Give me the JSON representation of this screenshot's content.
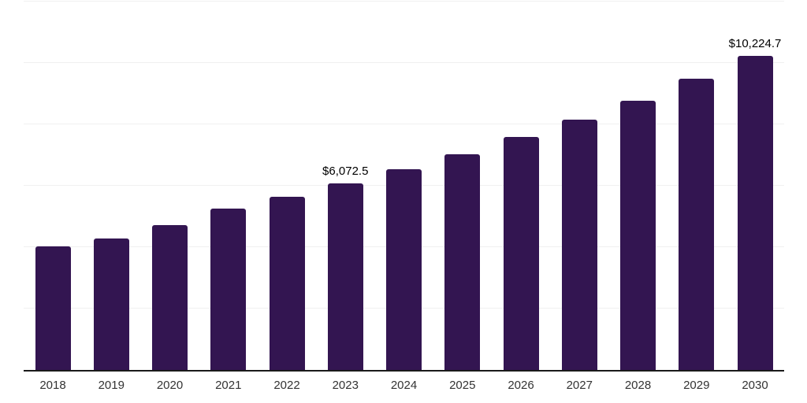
{
  "chart_data": {
    "type": "bar",
    "title": "",
    "xlabel": "",
    "ylabel": "",
    "categories": [
      "2018",
      "2019",
      "2020",
      "2021",
      "2022",
      "2023",
      "2024",
      "2025",
      "2026",
      "2027",
      "2028",
      "2029",
      "2030"
    ],
    "values": [
      4025,
      4280,
      4715,
      5255,
      5640,
      6072.5,
      6540,
      7025,
      7590,
      8150,
      8765,
      9485,
      10224.7
    ],
    "data_labels": [
      "",
      "",
      "",
      "",
      "",
      "$6,072.5",
      "",
      "",
      "",
      "",
      "",
      "",
      "$10,224.7"
    ],
    "ylim": [
      0,
      12000
    ],
    "gridline_step": 2000,
    "grid": "horizontal-only",
    "legend_position": "none",
    "colors": {
      "bar": "#331551",
      "axis": "#1a1a1a",
      "gridline": "#f0f0f0",
      "tick_label": "#333333",
      "data_label": "#000000",
      "background": "#ffffff"
    }
  }
}
